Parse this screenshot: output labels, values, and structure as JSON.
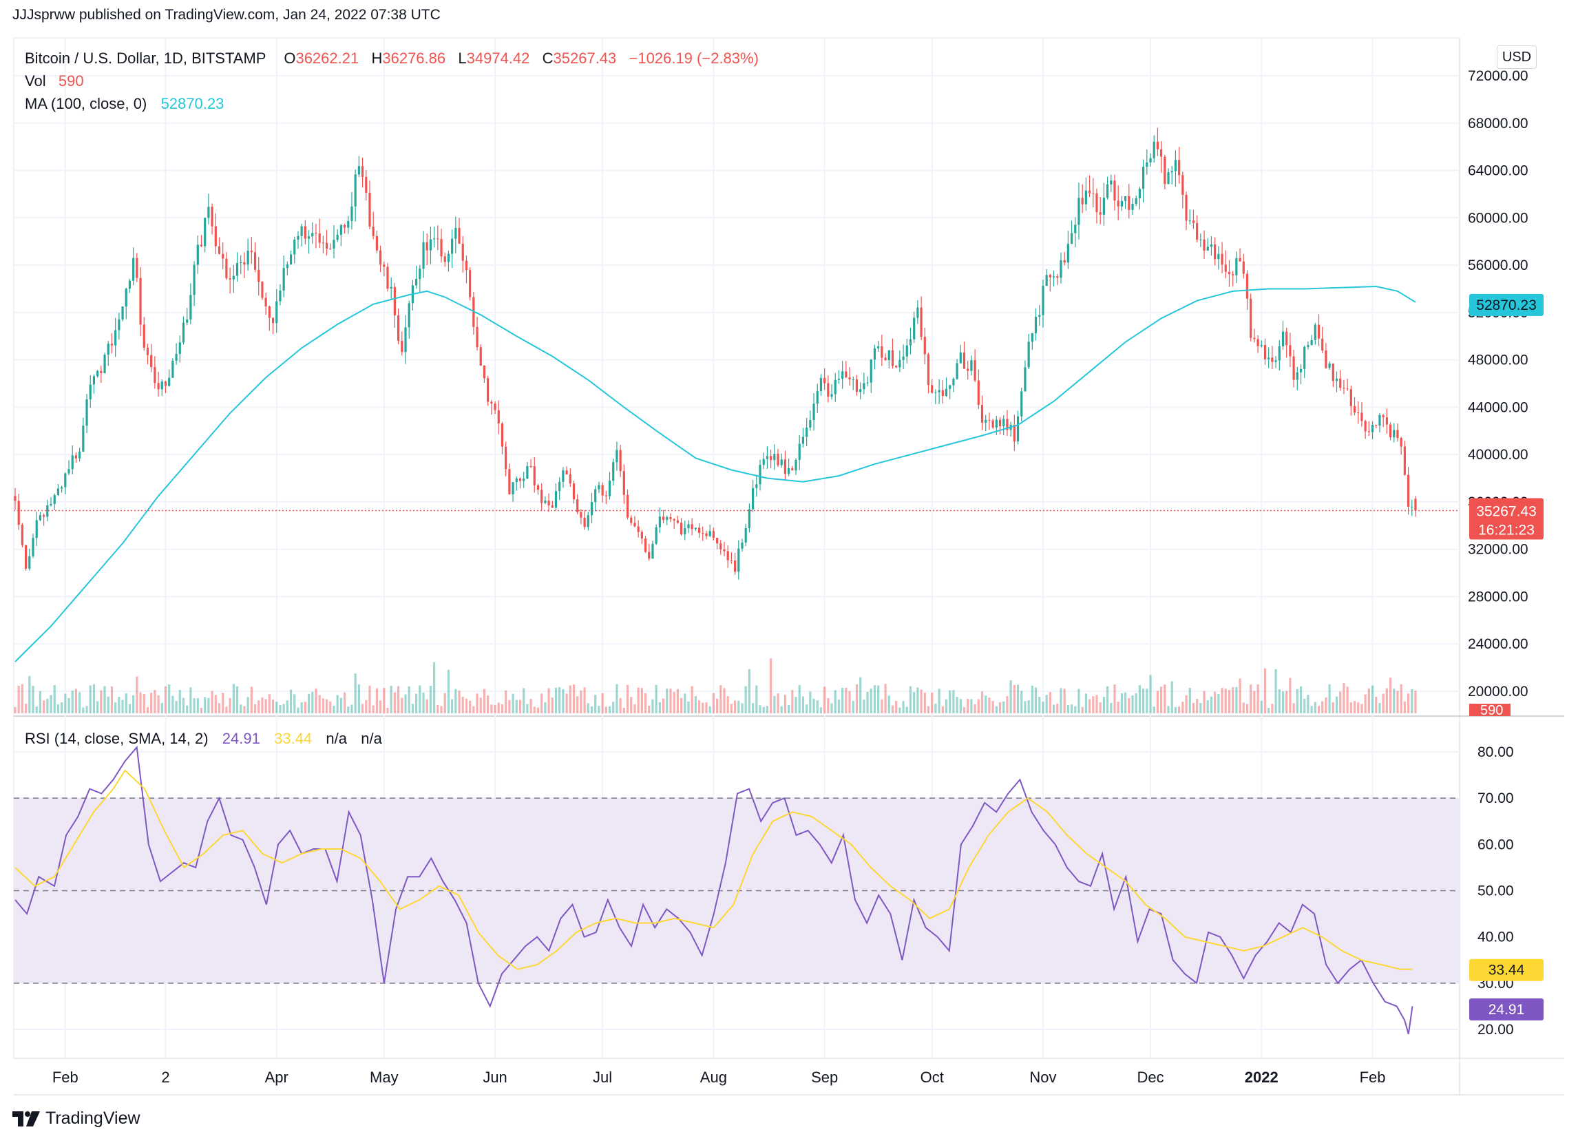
{
  "publish_line": "JJJsprww published on TradingView.com, Jan 24, 2022 07:38 UTC",
  "footer_brand": "TradingView",
  "currency_badge": "USD",
  "legend": {
    "symbol": "Bitcoin / U.S. Dollar, 1D, BITSTAMP",
    "o_label": "O",
    "o_value": "36262.21",
    "h_label": "H",
    "h_value": "36276.86",
    "l_label": "L",
    "l_value": "34974.42",
    "c_label": "C",
    "c_value": "35267.43",
    "change": "−1026.19 (−2.83%)",
    "vol_label": "Vol",
    "vol_value": "590",
    "ma_label": "MA (100, close, 0)",
    "ma_value": "52870.23",
    "rsi_label": "RSI (14, close, SMA, 14, 2)",
    "rsi_value": "24.91",
    "rsi_sma_value": "33.44",
    "rsi_na1": "n/a",
    "rsi_na2": "n/a"
  },
  "badges": {
    "ma": "52870.23",
    "price": "35267.43",
    "countdown": "16:21:23",
    "volume": "590",
    "rsi_sma": "33.44",
    "rsi": "24.91"
  },
  "colors": {
    "up": "#26a69a",
    "down": "#ef5350",
    "ma": "#26c6da",
    "rsi": "#7e57c2",
    "rsi_sma": "#fdd835",
    "rsi_band": "#ede7f6",
    "grid": "#f0f3fa",
    "text": "#131722"
  },
  "chart_data": {
    "type": "candlestick",
    "price_axis": {
      "ticks": [
        "72000.00",
        "68000.00",
        "64000.00",
        "60000.00",
        "56000.00",
        "52000.00",
        "48000.00",
        "44000.00",
        "40000.00",
        "36000.00",
        "32000.00",
        "28000.00",
        "24000.00",
        "20000.00"
      ],
      "tick_values": [
        72000,
        68000,
        64000,
        60000,
        56000,
        52000,
        48000,
        44000,
        40000,
        36000,
        32000,
        28000,
        24000,
        20000
      ],
      "ylim": [
        18000,
        73000
      ]
    },
    "rsi_axis": {
      "ticks": [
        "80.00",
        "70.00",
        "60.00",
        "50.00",
        "40.00",
        "30.00",
        "20.00"
      ],
      "tick_values": [
        80,
        70,
        60,
        50,
        40,
        30,
        20
      ],
      "ylim": [
        14,
        84
      ],
      "band": [
        30,
        70
      ],
      "midline": 50
    },
    "x_axis": {
      "labels": [
        "Feb",
        "2",
        "Apr",
        "May",
        "Jun",
        "Jul",
        "Aug",
        "Sep",
        "Oct",
        "Nov",
        "Dec",
        "2022",
        "Feb"
      ],
      "label_days": [
        14,
        42,
        73,
        103,
        134,
        164,
        195,
        226,
        256,
        287,
        317,
        348,
        379
      ],
      "range_days": [
        0,
        384
      ],
      "first_date": "2021-01-18",
      "last_date": "2022-01-24"
    },
    "close_anchors": [
      [
        0,
        36500
      ],
      [
        3,
        30500
      ],
      [
        6,
        34000
      ],
      [
        9,
        35500
      ],
      [
        12,
        37000
      ],
      [
        15,
        39000
      ],
      [
        18,
        40500
      ],
      [
        21,
        46500
      ],
      [
        24,
        47500
      ],
      [
        27,
        49500
      ],
      [
        30,
        52000
      ],
      [
        33,
        57000
      ],
      [
        36,
        49000
      ],
      [
        39,
        46000
      ],
      [
        42,
        45500
      ],
      [
        45,
        48500
      ],
      [
        48,
        52000
      ],
      [
        51,
        57000
      ],
      [
        54,
        61000
      ],
      [
        57,
        57000
      ],
      [
        60,
        54500
      ],
      [
        63,
        56500
      ],
      [
        66,
        57000
      ],
      [
        69,
        53000
      ],
      [
        72,
        51000
      ],
      [
        75,
        55000
      ],
      [
        78,
        58500
      ],
      [
        81,
        59000
      ],
      [
        84,
        58000
      ],
      [
        87,
        57000
      ],
      [
        90,
        59000
      ],
      [
        93,
        60500
      ],
      [
        96,
        64000
      ],
      [
        99,
        60000
      ],
      [
        102,
        56000
      ],
      [
        105,
        53500
      ],
      [
        108,
        48500
      ],
      [
        111,
        54000
      ],
      [
        114,
        57500
      ],
      [
        117,
        58000
      ],
      [
        120,
        56500
      ],
      [
        123,
        59000
      ],
      [
        126,
        55000
      ],
      [
        129,
        49500
      ],
      [
        132,
        45000
      ],
      [
        135,
        43000
      ],
      [
        138,
        37000
      ],
      [
        141,
        38000
      ],
      [
        144,
        39000
      ],
      [
        147,
        35500
      ],
      [
        150,
        36000
      ],
      [
        153,
        39000
      ],
      [
        156,
        36500
      ],
      [
        159,
        33500
      ],
      [
        162,
        37000
      ],
      [
        165,
        37000
      ],
      [
        168,
        40500
      ],
      [
        171,
        35000
      ],
      [
        174,
        33500
      ],
      [
        177,
        31500
      ],
      [
        180,
        34500
      ],
      [
        183,
        35000
      ],
      [
        186,
        33500
      ],
      [
        189,
        34000
      ],
      [
        192,
        33500
      ],
      [
        195,
        33000
      ],
      [
        198,
        31500
      ],
      [
        201,
        30500
      ],
      [
        204,
        34000
      ],
      [
        207,
        38000
      ],
      [
        210,
        40000
      ],
      [
        213,
        39500
      ],
      [
        216,
        38500
      ],
      [
        219,
        40500
      ],
      [
        222,
        43500
      ],
      [
        225,
        46000
      ],
      [
        228,
        45000
      ],
      [
        231,
        47000
      ],
      [
        234,
        46000
      ],
      [
        237,
        45500
      ],
      [
        240,
        49000
      ],
      [
        243,
        48500
      ],
      [
        246,
        47500
      ],
      [
        249,
        49000
      ],
      [
        252,
        52500
      ],
      [
        255,
        46000
      ],
      [
        258,
        45000
      ],
      [
        261,
        46500
      ],
      [
        264,
        48000
      ],
      [
        267,
        47500
      ],
      [
        270,
        43000
      ],
      [
        273,
        42500
      ],
      [
        276,
        43000
      ],
      [
        279,
        41500
      ],
      [
        282,
        48000
      ],
      [
        285,
        51500
      ],
      [
        288,
        54500
      ],
      [
        291,
        55000
      ],
      [
        294,
        57000
      ],
      [
        297,
        61500
      ],
      [
        300,
        62000
      ],
      [
        303,
        61000
      ],
      [
        306,
        62500
      ],
      [
        309,
        61000
      ],
      [
        312,
        61500
      ],
      [
        315,
        64000
      ],
      [
        318,
        66000
      ],
      [
        321,
        63500
      ],
      [
        324,
        64000
      ],
      [
        327,
        60500
      ],
      [
        330,
        58000
      ],
      [
        333,
        57500
      ],
      [
        336,
        56500
      ],
      [
        339,
        55000
      ],
      [
        342,
        57000
      ],
      [
        345,
        50500
      ],
      [
        348,
        49000
      ],
      [
        351,
        47500
      ],
      [
        354,
        50000
      ],
      [
        357,
        46500
      ],
      [
        360,
        48500
      ],
      [
        363,
        50500
      ],
      [
        366,
        47500
      ],
      [
        369,
        46500
      ],
      [
        372,
        45500
      ],
      [
        375,
        43000
      ],
      [
        378,
        42000
      ],
      [
        381,
        43500
      ],
      [
        384,
        42000
      ],
      [
        387,
        41000
      ],
      [
        389,
        36000
      ],
      [
        391,
        35267
      ]
    ],
    "ma_anchors": [
      [
        0,
        22500
      ],
      [
        10,
        25500
      ],
      [
        20,
        29000
      ],
      [
        30,
        32500
      ],
      [
        40,
        36500
      ],
      [
        50,
        40000
      ],
      [
        60,
        43500
      ],
      [
        70,
        46500
      ],
      [
        80,
        49000
      ],
      [
        90,
        51000
      ],
      [
        100,
        52700
      ],
      [
        110,
        53500
      ],
      [
        115,
        53800
      ],
      [
        120,
        53300
      ],
      [
        130,
        51800
      ],
      [
        140,
        50000
      ],
      [
        150,
        48300
      ],
      [
        160,
        46300
      ],
      [
        170,
        44000
      ],
      [
        180,
        41800
      ],
      [
        190,
        39700
      ],
      [
        200,
        38700
      ],
      [
        210,
        38000
      ],
      [
        220,
        37700
      ],
      [
        230,
        38200
      ],
      [
        240,
        39200
      ],
      [
        250,
        40000
      ],
      [
        260,
        40800
      ],
      [
        270,
        41600
      ],
      [
        280,
        42500
      ],
      [
        290,
        44500
      ],
      [
        300,
        47000
      ],
      [
        310,
        49500
      ],
      [
        320,
        51500
      ],
      [
        330,
        53000
      ],
      [
        340,
        53800
      ],
      [
        350,
        54000
      ],
      [
        360,
        54000
      ],
      [
        370,
        54100
      ],
      [
        380,
        54200
      ],
      [
        386,
        53800
      ],
      [
        391,
        52870
      ]
    ],
    "rsi_anchors": [
      [
        0,
        48
      ],
      [
        3,
        45
      ],
      [
        6,
        53
      ],
      [
        10,
        51
      ],
      [
        13,
        62
      ],
      [
        16,
        66
      ],
      [
        19,
        72
      ],
      [
        22,
        71
      ],
      [
        25,
        74
      ],
      [
        28,
        78
      ],
      [
        31,
        81
      ],
      [
        34,
        60
      ],
      [
        37,
        52
      ],
      [
        40,
        54
      ],
      [
        43,
        56
      ],
      [
        46,
        55
      ],
      [
        49,
        65
      ],
      [
        52,
        70
      ],
      [
        55,
        62
      ],
      [
        58,
        61
      ],
      [
        61,
        55
      ],
      [
        64,
        47
      ],
      [
        67,
        60
      ],
      [
        70,
        63
      ],
      [
        73,
        58
      ],
      [
        76,
        59
      ],
      [
        79,
        59
      ],
      [
        82,
        52
      ],
      [
        85,
        67
      ],
      [
        88,
        62
      ],
      [
        91,
        48
      ],
      [
        94,
        30
      ],
      [
        97,
        46
      ],
      [
        100,
        53
      ],
      [
        103,
        53
      ],
      [
        106,
        57
      ],
      [
        109,
        52
      ],
      [
        112,
        48
      ],
      [
        115,
        43
      ],
      [
        118,
        30
      ],
      [
        121,
        25
      ],
      [
        124,
        32
      ],
      [
        127,
        35
      ],
      [
        130,
        38
      ],
      [
        133,
        40
      ],
      [
        136,
        37
      ],
      [
        139,
        44
      ],
      [
        142,
        47
      ],
      [
        145,
        40
      ],
      [
        148,
        41
      ],
      [
        151,
        48
      ],
      [
        154,
        42
      ],
      [
        157,
        38
      ],
      [
        160,
        47
      ],
      [
        163,
        42
      ],
      [
        166,
        46
      ],
      [
        169,
        44
      ],
      [
        172,
        41
      ],
      [
        175,
        36
      ],
      [
        178,
        45
      ],
      [
        181,
        56
      ],
      [
        184,
        71
      ],
      [
        187,
        72
      ],
      [
        190,
        65
      ],
      [
        193,
        69
      ],
      [
        196,
        70
      ],
      [
        199,
        62
      ],
      [
        202,
        63
      ],
      [
        205,
        60
      ],
      [
        208,
        56
      ],
      [
        211,
        62
      ],
      [
        214,
        48
      ],
      [
        217,
        43
      ],
      [
        220,
        49
      ],
      [
        223,
        45
      ],
      [
        226,
        35
      ],
      [
        229,
        48
      ],
      [
        232,
        42
      ],
      [
        235,
        40
      ],
      [
        238,
        37
      ],
      [
        241,
        60
      ],
      [
        244,
        64
      ],
      [
        247,
        69
      ],
      [
        250,
        67
      ],
      [
        253,
        71
      ],
      [
        256,
        74
      ],
      [
        259,
        67
      ],
      [
        262,
        63
      ],
      [
        265,
        60
      ],
      [
        268,
        55
      ],
      [
        271,
        52
      ],
      [
        274,
        51
      ],
      [
        277,
        58
      ],
      [
        280,
        46
      ],
      [
        283,
        53
      ],
      [
        286,
        39
      ],
      [
        289,
        46
      ],
      [
        292,
        45
      ],
      [
        295,
        35
      ],
      [
        298,
        32
      ],
      [
        301,
        30
      ],
      [
        304,
        41
      ],
      [
        307,
        40
      ],
      [
        310,
        36
      ],
      [
        313,
        31
      ],
      [
        316,
        36
      ],
      [
        319,
        39
      ],
      [
        322,
        43
      ],
      [
        325,
        41
      ],
      [
        328,
        47
      ],
      [
        331,
        45
      ],
      [
        334,
        34
      ],
      [
        337,
        30
      ],
      [
        340,
        33
      ],
      [
        343,
        35
      ],
      [
        346,
        30
      ],
      [
        349,
        26
      ],
      [
        352,
        25
      ],
      [
        354,
        22
      ],
      [
        355,
        19
      ],
      [
        356,
        25
      ]
    ],
    "rsi_sma_anchors": [
      [
        0,
        55
      ],
      [
        5,
        51
      ],
      [
        10,
        53
      ],
      [
        15,
        60
      ],
      [
        20,
        67
      ],
      [
        25,
        72
      ],
      [
        28,
        76
      ],
      [
        33,
        72
      ],
      [
        38,
        63
      ],
      [
        43,
        55
      ],
      [
        48,
        58
      ],
      [
        53,
        62
      ],
      [
        58,
        63
      ],
      [
        63,
        58
      ],
      [
        68,
        56
      ],
      [
        73,
        58
      ],
      [
        78,
        59
      ],
      [
        83,
        59
      ],
      [
        88,
        57
      ],
      [
        93,
        52
      ],
      [
        98,
        46
      ],
      [
        103,
        48
      ],
      [
        108,
        51
      ],
      [
        113,
        49
      ],
      [
        118,
        41
      ],
      [
        123,
        36
      ],
      [
        128,
        33
      ],
      [
        133,
        34
      ],
      [
        138,
        37
      ],
      [
        143,
        41
      ],
      [
        148,
        43
      ],
      [
        153,
        44
      ],
      [
        158,
        43
      ],
      [
        163,
        43
      ],
      [
        168,
        44
      ],
      [
        173,
        43
      ],
      [
        178,
        42
      ],
      [
        183,
        47
      ],
      [
        188,
        58
      ],
      [
        193,
        65
      ],
      [
        198,
        67
      ],
      [
        203,
        66
      ],
      [
        208,
        63
      ],
      [
        213,
        60
      ],
      [
        218,
        55
      ],
      [
        223,
        51
      ],
      [
        228,
        48
      ],
      [
        233,
        44
      ],
      [
        238,
        46
      ],
      [
        243,
        55
      ],
      [
        248,
        62
      ],
      [
        253,
        67
      ],
      [
        258,
        70
      ],
      [
        263,
        67
      ],
      [
        268,
        62
      ],
      [
        273,
        58
      ],
      [
        278,
        55
      ],
      [
        283,
        52
      ],
      [
        288,
        47
      ],
      [
        293,
        44
      ],
      [
        298,
        40
      ],
      [
        303,
        39
      ],
      [
        308,
        38
      ],
      [
        313,
        37
      ],
      [
        318,
        38
      ],
      [
        323,
        40
      ],
      [
        328,
        42
      ],
      [
        333,
        40
      ],
      [
        338,
        37
      ],
      [
        343,
        35
      ],
      [
        348,
        34
      ],
      [
        353,
        33
      ],
      [
        356,
        33
      ]
    ],
    "last_close": 35267.43,
    "last_rsi": 24.91,
    "last_rsi_sma": 33.44
  }
}
